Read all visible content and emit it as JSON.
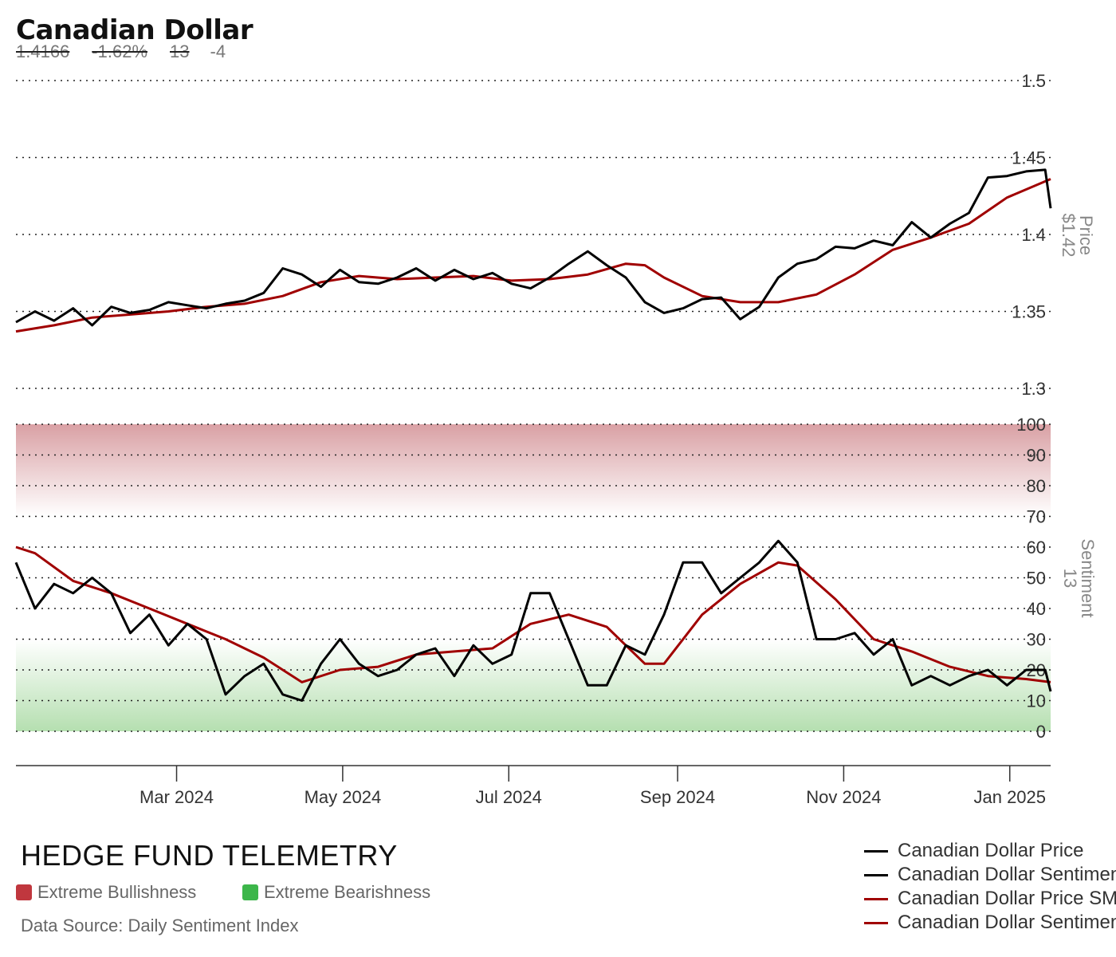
{
  "header": {
    "title": "Canadian Dollar",
    "stats": [
      "1.4166",
      "-1.62%",
      "13",
      "-4"
    ]
  },
  "footer": {
    "brand": "HEDGE FUND TELEMETRY",
    "key_bull": "Extreme Bullishness",
    "key_bear": "Extreme Bearishness",
    "source": "Data Source: Daily Sentiment Index"
  },
  "legend": [
    {
      "label": "Canadian Dollar Price",
      "color": "#000000"
    },
    {
      "label": "Canadian Dollar Sentiment",
      "color": "#000000"
    },
    {
      "label": "Canadian Dollar Price SMA",
      "color": "#a00000"
    },
    {
      "label": "Canadian Dollar Sentiment SMA",
      "color": "#a00000"
    }
  ],
  "colors": {
    "price": "#000000",
    "sma": "#a00000",
    "bull_zone": "#d9a0a4",
    "bear_zone": "#b5dfb0",
    "key_bull": "#c0373e",
    "key_bear": "#3cb64a"
  },
  "chart_data": [
    {
      "type": "line",
      "panel": "price",
      "ylabel": "Price",
      "ylabel_value": "$1.42",
      "ylim": [
        1.3,
        1.5
      ],
      "yticks": [
        "1.5",
        "1.45",
        "1.4",
        "1.35",
        "1.3"
      ],
      "ytick_values": [
        1.5,
        1.45,
        1.4,
        1.35,
        1.3
      ],
      "x_range": [
        "2024-01-02",
        "2025-01-16"
      ],
      "xtick_labels": [
        "Mar 2024",
        "May 2024",
        "Jul 2024",
        "Sep 2024",
        "Nov 2024",
        "Jan 2025"
      ],
      "xtick_dates": [
        "2024-03-01",
        "2024-05-01",
        "2024-07-01",
        "2024-09-01",
        "2024-11-01",
        "2025-01-01"
      ],
      "grid": true,
      "series": [
        {
          "name": "Canadian Dollar Price",
          "x": [
            "2024-01-02",
            "2024-01-09",
            "2024-01-16",
            "2024-01-23",
            "2024-01-30",
            "2024-02-06",
            "2024-02-13",
            "2024-02-20",
            "2024-02-27",
            "2024-03-05",
            "2024-03-12",
            "2024-03-19",
            "2024-03-26",
            "2024-04-02",
            "2024-04-09",
            "2024-04-16",
            "2024-04-23",
            "2024-04-30",
            "2024-05-07",
            "2024-05-14",
            "2024-05-21",
            "2024-05-28",
            "2024-06-04",
            "2024-06-11",
            "2024-06-18",
            "2024-06-25",
            "2024-07-02",
            "2024-07-09",
            "2024-07-16",
            "2024-07-23",
            "2024-07-30",
            "2024-08-06",
            "2024-08-13",
            "2024-08-20",
            "2024-08-27",
            "2024-09-03",
            "2024-09-10",
            "2024-09-17",
            "2024-09-24",
            "2024-10-01",
            "2024-10-08",
            "2024-10-15",
            "2024-10-22",
            "2024-10-29",
            "2024-11-05",
            "2024-11-12",
            "2024-11-19",
            "2024-11-26",
            "2024-12-03",
            "2024-12-10",
            "2024-12-17",
            "2024-12-24",
            "2024-12-31",
            "2025-01-07",
            "2025-01-14",
            "2025-01-16"
          ],
          "values": [
            1.343,
            1.35,
            1.344,
            1.352,
            1.341,
            1.353,
            1.349,
            1.351,
            1.356,
            1.354,
            1.352,
            1.355,
            1.357,
            1.362,
            1.378,
            1.374,
            1.366,
            1.377,
            1.369,
            1.368,
            1.372,
            1.378,
            1.37,
            1.377,
            1.371,
            1.375,
            1.368,
            1.365,
            1.372,
            1.381,
            1.389,
            1.38,
            1.372,
            1.356,
            1.349,
            1.352,
            1.358,
            1.359,
            1.345,
            1.353,
            1.372,
            1.381,
            1.384,
            1.392,
            1.391,
            1.396,
            1.393,
            1.408,
            1.398,
            1.407,
            1.414,
            1.437,
            1.438,
            1.441,
            1.442,
            1.417
          ]
        },
        {
          "name": "Canadian Dollar Price SMA",
          "x": [
            "2024-01-02",
            "2024-01-16",
            "2024-01-30",
            "2024-02-13",
            "2024-02-27",
            "2024-03-12",
            "2024-03-26",
            "2024-04-09",
            "2024-04-23",
            "2024-05-07",
            "2024-05-21",
            "2024-06-04",
            "2024-06-18",
            "2024-07-02",
            "2024-07-16",
            "2024-07-30",
            "2024-08-13",
            "2024-08-20",
            "2024-08-27",
            "2024-09-10",
            "2024-09-24",
            "2024-10-08",
            "2024-10-22",
            "2024-11-05",
            "2024-11-19",
            "2024-12-03",
            "2024-12-17",
            "2024-12-31",
            "2025-01-16"
          ],
          "values": [
            1.337,
            1.341,
            1.346,
            1.348,
            1.35,
            1.353,
            1.355,
            1.36,
            1.369,
            1.373,
            1.371,
            1.372,
            1.373,
            1.37,
            1.371,
            1.374,
            1.381,
            1.38,
            1.372,
            1.36,
            1.356,
            1.356,
            1.361,
            1.374,
            1.39,
            1.398,
            1.407,
            1.424,
            1.436
          ]
        }
      ]
    },
    {
      "type": "line",
      "panel": "sentiment",
      "ylabel": "Sentiment",
      "ylabel_value": "13",
      "ylim": [
        0,
        100
      ],
      "yticks": [
        "100",
        "90",
        "80",
        "70",
        "60",
        "50",
        "40",
        "30",
        "20",
        "10",
        "0"
      ],
      "ytick_values": [
        100,
        90,
        80,
        70,
        60,
        50,
        40,
        30,
        20,
        10,
        0
      ],
      "bands": [
        {
          "name": "Extreme Bullishness",
          "range": [
            70,
            100
          ]
        },
        {
          "name": "Extreme Bearishness",
          "range": [
            0,
            30
          ]
        }
      ],
      "grid": true,
      "series": [
        {
          "name": "Canadian Dollar Sentiment",
          "x": [
            "2024-01-02",
            "2024-01-09",
            "2024-01-16",
            "2024-01-23",
            "2024-01-30",
            "2024-02-06",
            "2024-02-13",
            "2024-02-20",
            "2024-02-27",
            "2024-03-05",
            "2024-03-12",
            "2024-03-19",
            "2024-03-26",
            "2024-04-02",
            "2024-04-09",
            "2024-04-16",
            "2024-04-23",
            "2024-04-30",
            "2024-05-07",
            "2024-05-14",
            "2024-05-21",
            "2024-05-28",
            "2024-06-04",
            "2024-06-11",
            "2024-06-18",
            "2024-06-25",
            "2024-07-02",
            "2024-07-09",
            "2024-07-16",
            "2024-07-23",
            "2024-07-30",
            "2024-08-06",
            "2024-08-13",
            "2024-08-20",
            "2024-08-27",
            "2024-09-03",
            "2024-09-10",
            "2024-09-17",
            "2024-09-24",
            "2024-10-01",
            "2024-10-08",
            "2024-10-15",
            "2024-10-22",
            "2024-10-29",
            "2024-11-05",
            "2024-11-12",
            "2024-11-19",
            "2024-11-26",
            "2024-12-03",
            "2024-12-10",
            "2024-12-17",
            "2024-12-24",
            "2024-12-31",
            "2025-01-07",
            "2025-01-14",
            "2025-01-16"
          ],
          "values": [
            55,
            40,
            48,
            45,
            50,
            45,
            32,
            38,
            28,
            35,
            30,
            12,
            18,
            22,
            12,
            10,
            22,
            30,
            22,
            18,
            20,
            25,
            27,
            18,
            28,
            22,
            25,
            45,
            45,
            30,
            15,
            15,
            28,
            25,
            38,
            55,
            55,
            45,
            50,
            55,
            62,
            55,
            30,
            30,
            32,
            25,
            30,
            15,
            18,
            15,
            18,
            20,
            15,
            20,
            20,
            13
          ]
        },
        {
          "name": "Canadian Dollar Sentiment SMA",
          "x": [
            "2024-01-02",
            "2024-01-09",
            "2024-01-23",
            "2024-02-06",
            "2024-02-20",
            "2024-03-05",
            "2024-03-19",
            "2024-04-02",
            "2024-04-16",
            "2024-04-30",
            "2024-05-14",
            "2024-05-28",
            "2024-06-11",
            "2024-06-25",
            "2024-07-09",
            "2024-07-23",
            "2024-08-06",
            "2024-08-20",
            "2024-08-27",
            "2024-09-10",
            "2024-09-24",
            "2024-10-08",
            "2024-10-15",
            "2024-10-29",
            "2024-11-12",
            "2024-11-26",
            "2024-12-10",
            "2024-12-24",
            "2025-01-07",
            "2025-01-16"
          ],
          "values": [
            60,
            58,
            49,
            45,
            40,
            35,
            30,
            24,
            16,
            20,
            21,
            25,
            26,
            27,
            35,
            38,
            34,
            22,
            22,
            38,
            48,
            55,
            54,
            43,
            30,
            26,
            21,
            18,
            17,
            16
          ]
        }
      ]
    }
  ]
}
